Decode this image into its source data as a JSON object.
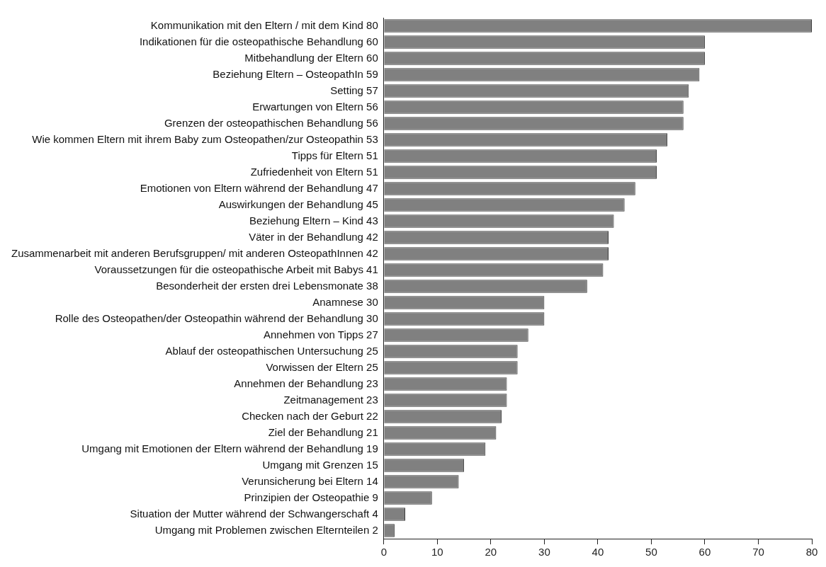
{
  "chart_data": {
    "type": "bar",
    "orientation": "horizontal",
    "categories": [
      "Kommunikation mit den Eltern / mit dem Kind 80",
      "Indikationen für die osteopathische Behandlung 60",
      "Mitbehandlung der Eltern 60",
      "Beziehung Eltern – OsteopathIn 59",
      "Setting 57",
      "Erwartungen von Eltern 56",
      "Grenzen der osteopathischen Behandlung 56",
      "Wie kommen Eltern mit ihrem Baby zum Osteopathen/zur Osteopathin 53",
      "Tipps für Eltern 51",
      "Zufriedenheit von Eltern 51",
      "Emotionen von Eltern während der Behandlung 47",
      "Auswirkungen der Behandlung 45",
      "Beziehung Eltern – Kind 43",
      "Väter in der Behandlung 42",
      "Zusammenarbeit mit anderen Berufsgruppen/ mit anderen OsteopathInnen 42",
      "Voraussetzungen für die osteopathische Arbeit mit Babys 41",
      "Besonderheit der ersten drei Lebensmonate 38",
      "Anamnese 30",
      "Rolle des Osteopathen/der Osteopathin während der Behandlung 30",
      "Annehmen von Tipps 27",
      "Ablauf der osteopathischen Untersuchung 25",
      "Vorwissen der Eltern 25",
      "Annehmen der Behandlung 23",
      "Zeitmanagement 23",
      "Checken nach der Geburt 22",
      "Ziel der Behandlung 21",
      "Umgang mit Emotionen der Eltern während der Behandlung 19",
      "Umgang mit Grenzen 15",
      "Verunsicherung bei Eltern 14",
      "Prinzipien der Osteopathie 9",
      "Situation der Mutter während der Schwangerschaft 4",
      "Umgang mit Problemen zwischen Elternteilen 2"
    ],
    "values": [
      80,
      60,
      60,
      59,
      57,
      56,
      56,
      53,
      51,
      51,
      47,
      45,
      43,
      42,
      42,
      41,
      38,
      30,
      30,
      27,
      25,
      25,
      23,
      23,
      22,
      21,
      19,
      15,
      14,
      9,
      4,
      2
    ],
    "color": "#808080",
    "xlim": [
      0,
      80
    ],
    "xticks": [
      0,
      10,
      20,
      30,
      40,
      50,
      60,
      70,
      80
    ],
    "grid": false,
    "legend": false
  }
}
